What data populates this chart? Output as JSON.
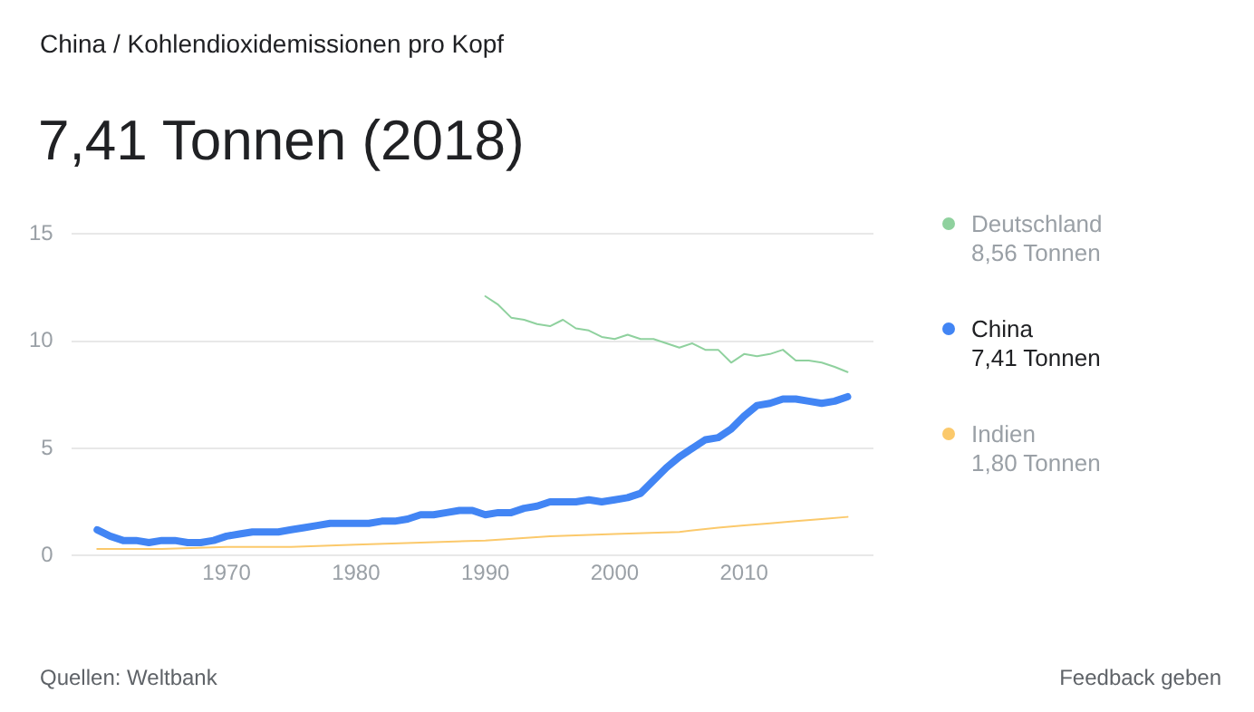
{
  "chart_data": {
    "type": "line",
    "title": "7,41 Tonnen (2018)",
    "annotations": [
      "China / Kohlendioxidemissionen pro Kopf",
      "Quellen: Weltbank",
      "Feedback geben",
      "8,56 Tonnen",
      "7,41 Tonnen",
      "1,80 Tonnen"
    ],
    "xlim": [
      1958,
      2020
    ],
    "xticks": [
      1970,
      1980,
      1990,
      2000,
      2010
    ],
    "ylim": [
      0,
      15
    ],
    "yticks": [
      0,
      5,
      10,
      15
    ],
    "grid": "y",
    "legend": "right",
    "series": [
      {
        "name": "Deutschland",
        "color": "#8fd19e",
        "x": [
          1990,
          1991,
          1992,
          1993,
          1994,
          1995,
          1996,
          1997,
          1998,
          1999,
          2000,
          2001,
          2002,
          2003,
          2004,
          2005,
          2006,
          2007,
          2008,
          2009,
          2010,
          2011,
          2012,
          2013,
          2014,
          2015,
          2016,
          2017,
          2018
        ],
        "values": [
          12.1,
          11.7,
          11.1,
          11.0,
          10.8,
          10.7,
          11.0,
          10.6,
          10.5,
          10.2,
          10.1,
          10.3,
          10.1,
          10.1,
          9.9,
          9.7,
          9.9,
          9.6,
          9.6,
          9.0,
          9.4,
          9.3,
          9.4,
          9.6,
          9.1,
          9.1,
          9.0,
          8.8,
          8.56
        ]
      },
      {
        "name": "China",
        "color": "#4285f4",
        "x": [
          1960,
          1961,
          1962,
          1963,
          1964,
          1965,
          1966,
          1967,
          1968,
          1969,
          1970,
          1971,
          1972,
          1973,
          1974,
          1975,
          1976,
          1977,
          1978,
          1979,
          1980,
          1981,
          1982,
          1983,
          1984,
          1985,
          1986,
          1987,
          1988,
          1989,
          1990,
          1991,
          1992,
          1993,
          1994,
          1995,
          1996,
          1997,
          1998,
          1999,
          2000,
          2001,
          2002,
          2003,
          2004,
          2005,
          2006,
          2007,
          2008,
          2009,
          2010,
          2011,
          2012,
          2013,
          2014,
          2015,
          2016,
          2017,
          2018
        ],
        "values": [
          1.2,
          0.9,
          0.7,
          0.7,
          0.6,
          0.7,
          0.7,
          0.6,
          0.6,
          0.7,
          0.9,
          1.0,
          1.1,
          1.1,
          1.1,
          1.2,
          1.3,
          1.4,
          1.5,
          1.5,
          1.5,
          1.5,
          1.6,
          1.6,
          1.7,
          1.9,
          1.9,
          2.0,
          2.1,
          2.1,
          1.9,
          2.0,
          2.0,
          2.2,
          2.3,
          2.5,
          2.5,
          2.5,
          2.6,
          2.5,
          2.6,
          2.7,
          2.9,
          3.5,
          4.1,
          4.6,
          5.0,
          5.4,
          5.5,
          5.9,
          6.5,
          7.0,
          7.1,
          7.3,
          7.3,
          7.2,
          7.1,
          7.2,
          7.41
        ]
      },
      {
        "name": "Indien",
        "color": "#fbc96b",
        "x": [
          1960,
          1965,
          1970,
          1975,
          1980,
          1985,
          1990,
          1995,
          2000,
          2005,
          2008,
          2010,
          2012,
          2014,
          2016,
          2018
        ],
        "values": [
          0.3,
          0.3,
          0.4,
          0.4,
          0.5,
          0.6,
          0.7,
          0.9,
          1.0,
          1.1,
          1.3,
          1.4,
          1.5,
          1.6,
          1.7,
          1.8
        ]
      }
    ]
  }
}
